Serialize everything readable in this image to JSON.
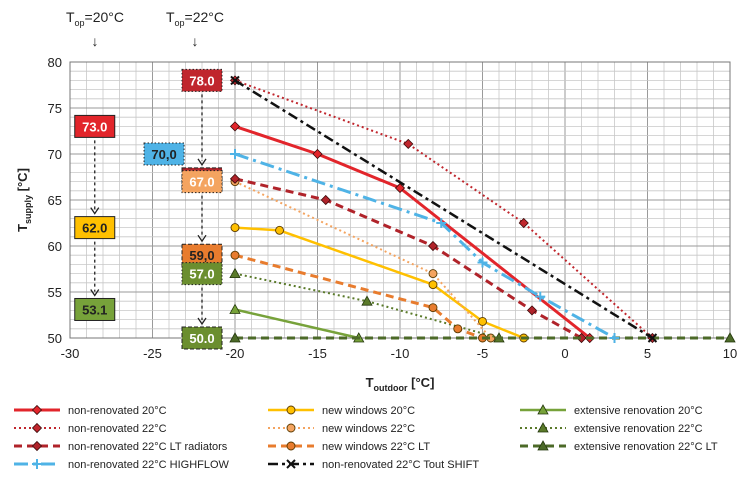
{
  "top_labels": [
    {
      "main": "T",
      "sub": "op",
      "rest": "=20°C",
      "arrow": "↓"
    },
    {
      "main": "T",
      "sub": "op",
      "rest": "=22°C",
      "arrow": "↓"
    }
  ],
  "chart_data": {
    "type": "line",
    "xlabel": {
      "main": "T",
      "sub": "outdoor",
      "rest": " [°C]"
    },
    "ylabel": {
      "main": "T",
      "sub": "supply",
      "rest": " [°C]"
    },
    "xlim": [
      -30,
      10
    ],
    "ylim": [
      50,
      80
    ],
    "x_ticks": [
      -30,
      -25,
      -20,
      -15,
      -10,
      -5,
      0,
      5,
      10
    ],
    "y_ticks": [
      50,
      55,
      60,
      65,
      70,
      75,
      80
    ],
    "grid": true,
    "legend_position": "bottom",
    "series": [
      {
        "name": "non-renovated 20°C",
        "color": "#e2252b",
        "dash": "",
        "width": 3,
        "marker": "diamond",
        "points": [
          [
            -20,
            73
          ],
          [
            -15,
            70
          ],
          [
            -10,
            66.3
          ],
          [
            1.5,
            50
          ]
        ]
      },
      {
        "name": "new windows 20°C",
        "color": "#ffc000",
        "dash": "",
        "width": 2.5,
        "marker": "circle",
        "points": [
          [
            -20,
            62
          ],
          [
            -17.3,
            61.7
          ],
          [
            -8,
            55.8
          ],
          [
            -5,
            51.8
          ],
          [
            -2.5,
            50
          ]
        ]
      },
      {
        "name": "extensive renovation 20°C",
        "color": "#77a23a",
        "dash": "",
        "width": 2.5,
        "marker": "triangle",
        "points": [
          [
            -20,
            53.1
          ],
          [
            -12.5,
            50
          ]
        ]
      },
      {
        "name": "non-renovated 22°C",
        "color": "#c0262d",
        "dash": "2,3",
        "width": 2,
        "marker": "diamond",
        "points": [
          [
            -20,
            78
          ],
          [
            -9.5,
            71.1
          ],
          [
            -2.5,
            62.5
          ],
          [
            5.3,
            50
          ]
        ]
      },
      {
        "name": "new windows 22°C",
        "color": "#f4a460",
        "dash": "2,3",
        "width": 2,
        "marker": "circle",
        "points": [
          [
            -20,
            67
          ],
          [
            -8,
            57
          ],
          [
            -4.5,
            50
          ]
        ]
      },
      {
        "name": "extensive renovation 22°C",
        "color": "#5a7a2a",
        "dash": "2,3",
        "width": 2,
        "marker": "triangle",
        "points": [
          [
            -20,
            57
          ],
          [
            -12,
            54
          ],
          [
            -4,
            50
          ]
        ]
      },
      {
        "name": "non-renovated 22°C LT radiators",
        "color": "#b0232a",
        "dash": "8,5",
        "width": 3,
        "marker": "diamond",
        "points": [
          [
            -20,
            67.3
          ],
          [
            -14.5,
            65
          ],
          [
            -8,
            60
          ],
          [
            -2,
            53
          ],
          [
            1,
            50
          ]
        ]
      },
      {
        "name": "new windows 22°C LT",
        "color": "#e87c2e",
        "dash": "8,5",
        "width": 3,
        "marker": "circle",
        "points": [
          [
            -20,
            59
          ],
          [
            -8,
            53.3
          ],
          [
            -6.5,
            51
          ],
          [
            -5,
            50
          ]
        ]
      },
      {
        "name": "extensive renovation 22°C LT",
        "color": "#4c6a28",
        "dash": "8,5",
        "width": 3,
        "marker": "triangle",
        "points": [
          [
            -20,
            50
          ],
          [
            10,
            50
          ]
        ]
      },
      {
        "name": "non-renovated 22°C HIGHFLOW",
        "color": "#4fb3e6",
        "dash": "14,5,3,5",
        "width": 3,
        "marker": "plus",
        "points": [
          [
            -20,
            70
          ],
          [
            -7.5,
            62.5
          ],
          [
            -5,
            58.2
          ],
          [
            -1.5,
            54.5
          ],
          [
            3,
            50
          ]
        ]
      },
      {
        "name": "non-renovated 22°C Tout SHIFT",
        "color": "#111111",
        "dash": "10,4,3,4",
        "width": 2.5,
        "marker": "x",
        "points": [
          [
            -20,
            78
          ],
          [
            5.3,
            50
          ]
        ]
      }
    ],
    "annotations": [
      {
        "x": -28.5,
        "y": 73.0,
        "label": "73.0",
        "fill": "#e2252b",
        "text_color": "#ffffff",
        "border": "solid"
      },
      {
        "x": -28.5,
        "y": 62.0,
        "label": "62.0",
        "fill": "#ffc000",
        "text_color": "#222222",
        "border": "solid"
      },
      {
        "x": -28.5,
        "y": 53.1,
        "label": "53.1",
        "fill": "#77a23a",
        "text_color": "#222222",
        "border": "solid"
      },
      {
        "x": -24.3,
        "y": 70.0,
        "label": "70,0",
        "fill": "#4fb3e6",
        "text_color": "#222222",
        "border": "dotted"
      },
      {
        "x": -22.0,
        "y": 78.0,
        "label": "78.0",
        "fill": "#c0262d",
        "text_color": "#ffffff",
        "border": "dotted"
      },
      {
        "x": -22.0,
        "y": 67.3,
        "label": "67.3",
        "fill": "#b0232a",
        "text_color": "#ffffff",
        "border": "dashed"
      },
      {
        "x": -22.0,
        "y": 67.0,
        "label": "67.0",
        "fill": "#f4a460",
        "text_color": "#ffffff",
        "border": "dotted"
      },
      {
        "x": -22.0,
        "y": 59.0,
        "label": "59,0",
        "fill": "#e87c2e",
        "text_color": "#222222",
        "border": "dashed"
      },
      {
        "x": -22.0,
        "y": 57.0,
        "label": "57.0",
        "fill": "#6b8e2f",
        "text_color": "#ffffff",
        "border": "dotted"
      },
      {
        "x": -22.0,
        "y": 50.0,
        "label": "50.0",
        "fill": "#6b8e2f",
        "text_color": "#ffffff",
        "border": "dashed"
      }
    ],
    "annotation_arrows": [
      {
        "from": 73.0,
        "to": 62.0,
        "column": 0
      },
      {
        "from": 62.0,
        "to": 53.1,
        "column": 0
      },
      {
        "from": 78.0,
        "to": 67.3,
        "column": 1
      },
      {
        "from": 67.0,
        "to": 59.0,
        "column": 1
      },
      {
        "from": 57.0,
        "to": 50.0,
        "column": 1
      }
    ]
  }
}
